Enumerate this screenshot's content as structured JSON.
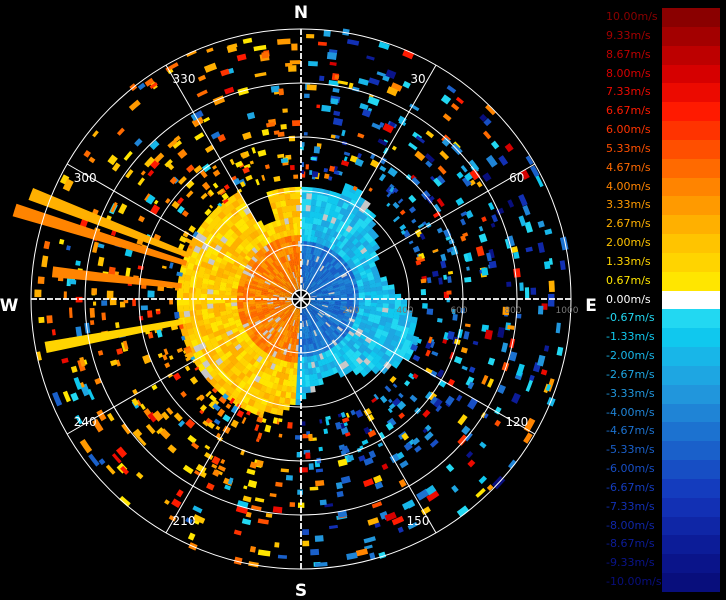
{
  "compass": {
    "north": "N",
    "south": "S",
    "east": "E",
    "west": "W"
  },
  "azimuth_labels": [
    {
      "angle": 30,
      "text": "30"
    },
    {
      "angle": 60,
      "text": "60"
    },
    {
      "angle": 120,
      "text": "120"
    },
    {
      "angle": 150,
      "text": "150"
    },
    {
      "angle": 210,
      "text": "210"
    },
    {
      "angle": 240,
      "text": "240"
    },
    {
      "angle": 300,
      "text": "300"
    },
    {
      "angle": 330,
      "text": "330"
    }
  ],
  "range_labels": [
    "200",
    "400",
    "600",
    "800",
    "1000"
  ],
  "legend": [
    {
      "label": "10.00m/s",
      "color": "#8a0000"
    },
    {
      "label": "9.33m/s",
      "color": "#a30000"
    },
    {
      "label": "8.67m/s",
      "color": "#bd0000"
    },
    {
      "label": "8.00m/s",
      "color": "#d60000"
    },
    {
      "label": "7.33m/s",
      "color": "#ec0a00"
    },
    {
      "label": "6.67m/s",
      "color": "#ff1a00"
    },
    {
      "label": "6.00m/s",
      "color": "#ff3300"
    },
    {
      "label": "5.33m/s",
      "color": "#ff4f00"
    },
    {
      "label": "4.67m/s",
      "color": "#ff6a00"
    },
    {
      "label": "4.00m/s",
      "color": "#ff8400"
    },
    {
      "label": "3.33m/s",
      "color": "#ff9a00"
    },
    {
      "label": "2.67m/s",
      "color": "#ffb000"
    },
    {
      "label": "2.00m/s",
      "color": "#ffc400"
    },
    {
      "label": "1.33m/s",
      "color": "#ffd400"
    },
    {
      "label": "0.67m/s",
      "color": "#ffe600"
    },
    {
      "label": "0.00m/s",
      "color": "#ffffff"
    },
    {
      "label": "-0.67m/s",
      "color": "#22d8f2"
    },
    {
      "label": "-1.33m/s",
      "color": "#10c8ee"
    },
    {
      "label": "-2.00m/s",
      "color": "#18b6e8"
    },
    {
      "label": "-2.67m/s",
      "color": "#1ea6e2"
    },
    {
      "label": "-3.33m/s",
      "color": "#2196dc"
    },
    {
      "label": "-4.00m/s",
      "color": "#1f84d6"
    },
    {
      "label": "-4.67m/s",
      "color": "#1c72d0"
    },
    {
      "label": "-5.33m/s",
      "color": "#1a60ca"
    },
    {
      "label": "-6.00m/s",
      "color": "#174ec4"
    },
    {
      "label": "-6.67m/s",
      "color": "#143cbe"
    },
    {
      "label": "-7.33m/s",
      "color": "#1230b4"
    },
    {
      "label": "-8.00m/s",
      "color": "#0f26a6"
    },
    {
      "label": "-8.67m/s",
      "color": "#0c1c98"
    },
    {
      "label": "-9.33m/s",
      "color": "#0a148a"
    },
    {
      "label": "-10.00m/s",
      "color": "#080e7c"
    }
  ],
  "colors": {
    "background": "#000000",
    "ring": "#ffffff",
    "approaching_core": "#e8b020",
    "receding_core": "#2fa6dc"
  }
}
